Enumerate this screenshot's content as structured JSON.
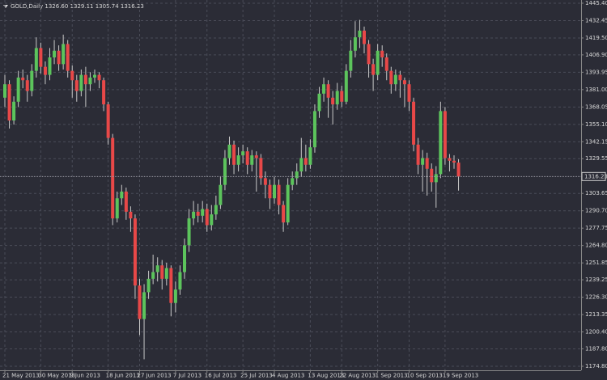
{
  "chart_data": {
    "type": "candlestick",
    "title": "GOLD,Daily  1326.60 1329.11 1305.74 1316.23",
    "up_color": "#5cc45c",
    "down_color": "#e84848",
    "wick_color": "#c8c8c8",
    "background": "#2b2c36",
    "grid": true,
    "ylim": [
      1171.8,
      1447.8
    ],
    "yticks": [
      {
        "value": 1445.4,
        "label": "1445.40"
      },
      {
        "value": 1432.45,
        "label": "1432.45"
      },
      {
        "value": 1419.5,
        "label": "1419.50"
      },
      {
        "value": 1406.9,
        "label": "1406.90"
      },
      {
        "value": 1393.95,
        "label": "1393.95"
      },
      {
        "value": 1381,
        "label": "1381.00"
      },
      {
        "value": 1368.05,
        "label": "1368.05"
      },
      {
        "value": 1355.1,
        "label": "1355.10"
      },
      {
        "value": 1342.15,
        "label": "1342.15"
      },
      {
        "value": 1329.55,
        "label": "1329.55"
      },
      {
        "value": 1303.65,
        "label": "1303.65"
      },
      {
        "value": 1290.7,
        "label": "1290.70"
      },
      {
        "value": 1277.75,
        "label": "1277.75"
      },
      {
        "value": 1264.8,
        "label": "1264.80"
      },
      {
        "value": 1251.85,
        "label": "1251.85"
      },
      {
        "value": 1239.25,
        "label": "1239.25"
      },
      {
        "value": 1226.3,
        "label": "1226.30"
      },
      {
        "value": 1213.35,
        "label": "1213.35"
      },
      {
        "value": 1200.4,
        "label": "1200.40"
      },
      {
        "value": 1187.8,
        "label": "1187.80"
      },
      {
        "value": 1174.8,
        "label": "1174.80"
      }
    ],
    "current_price": {
      "value": 1316.23,
      "label": "1316.23"
    },
    "categories": [
      "21 May 2013",
      null,
      null,
      null,
      null,
      null,
      null,
      null,
      "30 May 2013",
      null,
      null,
      null,
      null,
      null,
      null,
      "9 Jun 2013",
      null,
      null,
      null,
      null,
      null,
      null,
      null,
      "18 Jun 2013",
      null,
      null,
      null,
      null,
      null,
      null,
      "27 Jun 2013",
      null,
      null,
      null,
      null,
      null,
      null,
      null,
      "7 Jul 2013",
      null,
      null,
      null,
      null,
      null,
      null,
      "16 Jul 2013",
      null,
      null,
      null,
      null,
      null,
      null,
      null,
      "25 Jul 2013",
      null,
      null,
      null,
      null,
      null,
      null,
      "4 Aug 2013",
      null,
      null,
      null,
      null,
      null,
      null,
      null,
      "13 Aug 2013",
      null,
      null,
      null,
      null,
      null,
      null,
      "22 Aug 2013",
      null,
      null,
      null,
      null,
      null,
      null,
      null,
      "1 Sep 2013",
      null,
      null,
      null,
      null,
      null,
      null,
      "10 Sep 2013",
      null,
      null,
      null,
      null,
      null,
      null,
      null,
      "19 Sep 2013",
      null,
      null,
      null
    ],
    "open": [
      1375,
      1385,
      1358,
      1372,
      1390,
      1388,
      1380,
      1395,
      1412,
      1398,
      1392,
      1405,
      1410,
      1400,
      1415,
      1395,
      1388,
      1380,
      1392,
      1385,
      1390,
      1392,
      1388,
      1370,
      1345,
      1285,
      1300,
      1305,
      1290,
      1285,
      1235,
      1210,
      1230,
      1240,
      1245,
      1250,
      1240,
      1248,
      1222,
      1232,
      1245,
      1265,
      1285,
      1290,
      1287,
      1292,
      1280,
      1288,
      1295,
      1310,
      1330,
      1340,
      1325,
      1332,
      1335,
      1325,
      1332,
      1330,
      1315,
      1310,
      1300,
      1310,
      1295,
      1282,
      1310,
      1315,
      1320,
      1330,
      1325,
      1338,
      1365,
      1378,
      1385,
      1375,
      1370,
      1380,
      1372,
      1395,
      1410,
      1420,
      1425,
      1415,
      1400,
      1392,
      1410,
      1405,
      1395,
      1385,
      1392,
      1388,
      1385,
      1372,
      1340,
      1325,
      1330,
      1322,
      1312,
      1318,
      1365,
      1330,
      1328,
      1326.6
    ],
    "high": [
      1392,
      1388,
      1376,
      1395,
      1396,
      1392,
      1400,
      1420,
      1416,
      1402,
      1412,
      1418,
      1414,
      1422,
      1418,
      1399,
      1392,
      1396,
      1398,
      1394,
      1396,
      1394,
      1390,
      1372,
      1348,
      1305,
      1310,
      1308,
      1294,
      1288,
      1240,
      1236,
      1246,
      1258,
      1256,
      1254,
      1252,
      1250,
      1238,
      1250,
      1270,
      1292,
      1298,
      1296,
      1298,
      1296,
      1295,
      1302,
      1316,
      1336,
      1346,
      1343,
      1338,
      1340,
      1338,
      1336,
      1335,
      1333,
      1320,
      1314,
      1316,
      1314,
      1298,
      1315,
      1320,
      1326,
      1345,
      1340,
      1344,
      1370,
      1383,
      1390,
      1388,
      1380,
      1386,
      1384,
      1400,
      1418,
      1432,
      1433,
      1428,
      1418,
      1404,
      1415,
      1414,
      1408,
      1398,
      1396,
      1395,
      1390,
      1388,
      1375,
      1345,
      1336,
      1334,
      1326,
      1324,
      1372,
      1368,
      1333,
      1332,
      1329.11
    ],
    "low": [
      1368,
      1352,
      1355,
      1368,
      1382,
      1372,
      1376,
      1390,
      1393,
      1385,
      1388,
      1400,
      1395,
      1396,
      1390,
      1375,
      1372,
      1376,
      1368,
      1380,
      1386,
      1382,
      1365,
      1340,
      1280,
      1282,
      1295,
      1284,
      1275,
      1225,
      1198,
      1180,
      1225,
      1236,
      1238,
      1232,
      1235,
      1212,
      1215,
      1228,
      1240,
      1260,
      1280,
      1282,
      1282,
      1275,
      1276,
      1284,
      1292,
      1306,
      1325,
      1318,
      1320,
      1326,
      1318,
      1320,
      1305,
      1310,
      1300,
      1292,
      1296,
      1288,
      1275,
      1280,
      1306,
      1310,
      1316,
      1320,
      1322,
      1334,
      1360,
      1372,
      1360,
      1355,
      1366,
      1368,
      1370,
      1390,
      1405,
      1412,
      1408,
      1390,
      1380,
      1388,
      1398,
      1388,
      1378,
      1380,
      1375,
      1368,
      1365,
      1335,
      1318,
      1305,
      1302,
      1305,
      1293,
      1315,
      1325,
      1320,
      1322,
      1305.74
    ],
    "close": [
      1385,
      1358,
      1372,
      1390,
      1388,
      1380,
      1395,
      1412,
      1398,
      1392,
      1405,
      1410,
      1400,
      1415,
      1395,
      1388,
      1380,
      1392,
      1385,
      1390,
      1392,
      1388,
      1370,
      1345,
      1285,
      1300,
      1305,
      1290,
      1285,
      1235,
      1210,
      1230,
      1240,
      1245,
      1250,
      1240,
      1248,
      1222,
      1232,
      1245,
      1265,
      1285,
      1290,
      1287,
      1292,
      1280,
      1288,
      1295,
      1310,
      1330,
      1340,
      1325,
      1332,
      1335,
      1325,
      1332,
      1330,
      1315,
      1310,
      1300,
      1310,
      1295,
      1282,
      1310,
      1315,
      1320,
      1330,
      1325,
      1338,
      1365,
      1378,
      1385,
      1375,
      1370,
      1380,
      1372,
      1395,
      1410,
      1420,
      1425,
      1415,
      1400,
      1392,
      1410,
      1405,
      1395,
      1385,
      1392,
      1388,
      1385,
      1372,
      1340,
      1325,
      1330,
      1322,
      1312,
      1318,
      1365,
      1330,
      1328,
      1326.6,
      1316.23
    ]
  }
}
